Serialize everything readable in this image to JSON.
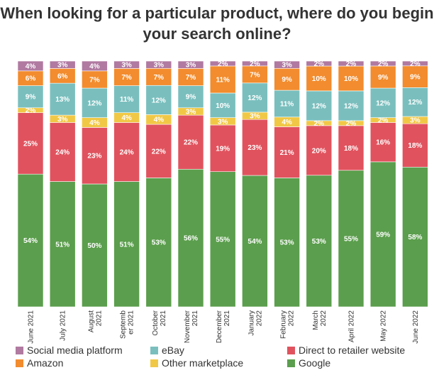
{
  "title": "When looking for a particular product, where do you begin your search online?",
  "chart_data": {
    "type": "bar",
    "stacked": true,
    "percent_stacked": true,
    "title": "When looking for a particular product, where do you begin your search online?",
    "categories": [
      "June 2021",
      "July 2021",
      "August 2021",
      "September 2021",
      "October 2021",
      "November 2021",
      "December 2021",
      "January 2022",
      "February 2022",
      "March 2022",
      "April 2022",
      "May 2022",
      "June 2022"
    ],
    "category_labels": [
      [
        "June 2021"
      ],
      [
        "July 2021"
      ],
      [
        "August",
        "2021"
      ],
      [
        "Septemb",
        "er 2021"
      ],
      [
        "October",
        "2021"
      ],
      [
        "November",
        "2021"
      ],
      [
        "December",
        "2021"
      ],
      [
        "January",
        "2022"
      ],
      [
        "February",
        "2022"
      ],
      [
        "March",
        "2022"
      ],
      [
        "April 2022"
      ],
      [
        "May 2022"
      ],
      [
        "June 2022"
      ]
    ],
    "series": [
      {
        "name": "Google",
        "color": "#5b9e4d",
        "values": [
          54,
          51,
          50,
          51,
          53,
          56,
          55,
          54,
          53,
          53,
          55,
          59,
          58
        ]
      },
      {
        "name": "Direct to retailer website",
        "color": "#e0535e",
        "values": [
          25,
          24,
          23,
          24,
          22,
          22,
          19,
          23,
          21,
          20,
          18,
          16,
          18
        ]
      },
      {
        "name": "Other marketplace",
        "color": "#f1c846",
        "values": [
          2,
          3,
          4,
          4,
          4,
          3,
          3,
          3,
          4,
          2,
          2,
          2,
          3
        ]
      },
      {
        "name": "eBay",
        "color": "#7abfbe",
        "values": [
          9,
          13,
          12,
          11,
          12,
          9,
          10,
          12,
          11,
          12,
          12,
          12,
          12
        ]
      },
      {
        "name": "Amazon",
        "color": "#f28c2e",
        "values": [
          6,
          6,
          7,
          7,
          7,
          7,
          11,
          7,
          9,
          10,
          10,
          9,
          9
        ]
      },
      {
        "name": "Social media platform",
        "color": "#b07aa1",
        "values": [
          4,
          3,
          4,
          3,
          3,
          3,
          2,
          2,
          3,
          2,
          2,
          2,
          2
        ]
      }
    ],
    "data_labels": true,
    "grid": false,
    "legend_position": "bottom"
  },
  "legend": {
    "items": [
      {
        "label": "Social media platform",
        "color": "#b07aa1"
      },
      {
        "label": "eBay",
        "color": "#7abfbe"
      },
      {
        "label": "Direct to retailer website",
        "color": "#e0535e"
      },
      {
        "label": "Amazon",
        "color": "#f28c2e"
      },
      {
        "label": "Other marketplace",
        "color": "#f1c846"
      },
      {
        "label": "Google",
        "color": "#5b9e4d"
      }
    ]
  }
}
